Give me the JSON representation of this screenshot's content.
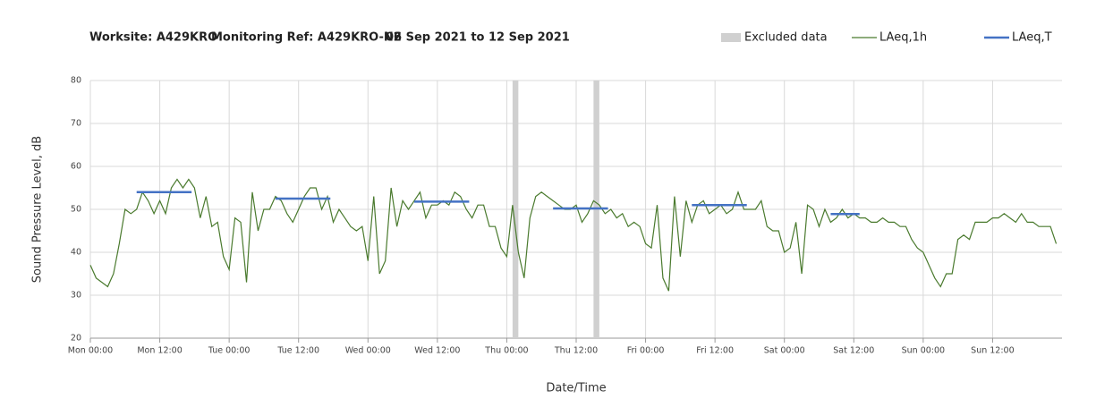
{
  "chart_data": {
    "type": "line",
    "title": [
      "Worksite: A429KRO",
      "Monitoring Ref: A429KRO-N2",
      "06 Sep 2021 to 12 Sep 2021"
    ],
    "x_label": "Date/Time",
    "y_label": "Sound Pressure Level, dB",
    "xlim": [
      0,
      168
    ],
    "ylim": [
      20,
      80
    ],
    "xticks": [
      {
        "value": 0,
        "label": "Mon 00:00"
      },
      {
        "value": 12,
        "label": "Mon 12:00"
      },
      {
        "value": 24,
        "label": "Tue 00:00"
      },
      {
        "value": 36,
        "label": "Tue 12:00"
      },
      {
        "value": 48,
        "label": "Wed 00:00"
      },
      {
        "value": 60,
        "label": "Wed 12:00"
      },
      {
        "value": 72,
        "label": "Thu 00:00"
      },
      {
        "value": 84,
        "label": "Thu 12:00"
      },
      {
        "value": 96,
        "label": "Fri 00:00"
      },
      {
        "value": 108,
        "label": "Fri 12:00"
      },
      {
        "value": 120,
        "label": "Sat 00:00"
      },
      {
        "value": 132,
        "label": "Sat 12:00"
      },
      {
        "value": 144,
        "label": "Sun 00:00"
      },
      {
        "value": 156,
        "label": "Sun 12:00"
      }
    ],
    "yticks": [
      20,
      30,
      40,
      50,
      60,
      70,
      80
    ],
    "grid": true,
    "excluded": {
      "name": "Excluded data",
      "color": "#d0d0d0",
      "ranges": [
        {
          "start": 73,
          "end": 74
        },
        {
          "start": 87,
          "end": 88
        }
      ]
    },
    "series": [
      {
        "name": "LAeq,1h",
        "color": "#4a7a2e",
        "values": [
          37,
          34,
          33,
          32,
          35,
          42,
          50,
          49,
          50,
          54,
          52,
          49,
          52,
          49,
          55,
          57,
          55,
          57,
          55,
          48,
          53,
          46,
          47,
          39,
          36,
          48,
          47,
          33,
          54,
          45,
          50,
          50,
          53,
          52,
          49,
          47,
          50,
          53,
          55,
          55,
          50,
          53,
          47,
          50,
          48,
          46,
          45,
          46,
          38,
          53,
          35,
          38,
          55,
          46,
          52,
          50,
          52,
          54,
          48,
          51,
          51,
          52,
          51,
          54,
          53,
          50,
          48,
          51,
          51,
          46,
          46,
          41,
          39,
          51,
          40,
          34,
          48,
          53,
          54,
          53,
          52,
          51,
          50,
          50,
          51,
          47,
          49,
          52,
          51,
          49,
          50,
          48,
          49,
          46,
          47,
          46,
          42,
          41,
          51,
          34,
          31,
          53,
          39,
          52,
          47,
          51,
          52,
          49,
          50,
          51,
          49,
          50,
          54,
          50,
          50,
          50,
          52,
          46,
          45,
          45,
          40,
          41,
          47,
          35,
          51,
          50,
          46,
          50,
          47,
          48,
          50,
          48,
          49,
          48,
          48,
          47,
          47,
          48,
          47,
          47,
          46,
          46,
          43,
          41,
          40,
          37,
          34,
          32,
          35,
          35,
          43,
          44,
          43,
          47,
          47,
          47,
          48,
          48,
          49,
          48,
          47,
          49,
          47,
          47,
          46,
          46,
          46,
          42
        ]
      },
      {
        "name": "LAeq,T",
        "color": "#4472c4",
        "segments": [
          {
            "start": 8,
            "end": 17.5,
            "value": 54
          },
          {
            "start": 32,
            "end": 41.5,
            "value": 52.5
          },
          {
            "start": 56,
            "end": 65.5,
            "value": 51.8
          },
          {
            "start": 80,
            "end": 89.5,
            "value": 50.2
          },
          {
            "start": 104,
            "end": 113.5,
            "value": 51
          },
          {
            "start": 128,
            "end": 133,
            "value": 48.9
          }
        ]
      }
    ]
  }
}
